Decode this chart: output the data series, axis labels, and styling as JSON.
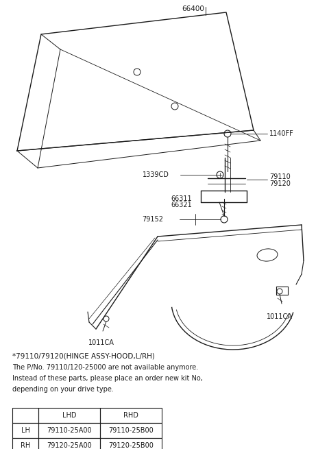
{
  "bg_color": "#ffffff",
  "line_color": "#1a1a1a",
  "text_color": "#1a1a1a",
  "note_lines": [
    "*79110/79120(HINGE ASSY-HOOD,L/RH)",
    "The P/No. 79110/120-25000 are not available anymore.",
    "Instead of these parts, please place an order new kit No,",
    "depending on your drive type."
  ],
  "table": {
    "headers": [
      "",
      "LHD",
      "RHD"
    ],
    "rows": [
      [
        "LH",
        "79110-25A00",
        "79110-25B00"
      ],
      [
        "RH",
        "79120-25A00",
        "79120-25B00"
      ]
    ]
  }
}
